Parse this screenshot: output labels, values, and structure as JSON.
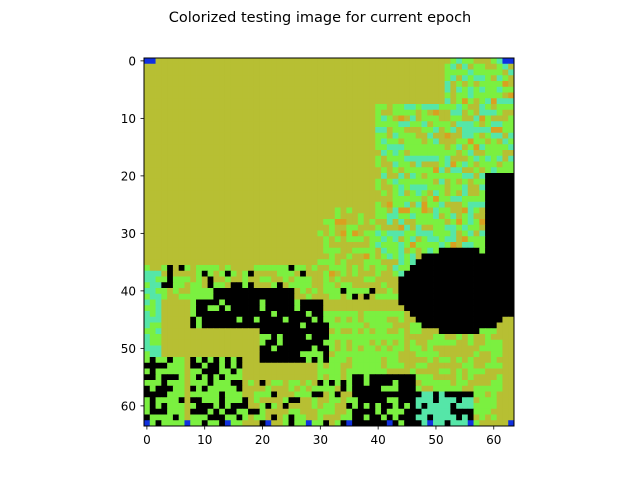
{
  "chart_data": {
    "type": "heatmap",
    "title": "Colorized testing image for current epoch",
    "xlabel": "",
    "ylabel": "",
    "grid_size": [
      64,
      64
    ],
    "xlim": [
      -0.5,
      63.5
    ],
    "ylim": [
      63.5,
      -0.5
    ],
    "xticks": [
      0,
      10,
      20,
      30,
      40,
      50,
      60
    ],
    "yticks": [
      0,
      10,
      20,
      30,
      40,
      50,
      60
    ],
    "grid": false,
    "legend": "none",
    "colors": {
      "olive": "#b7bf33",
      "lime": "#7bf040",
      "cyan": "#55e6a8",
      "black": "#000000",
      "blue": "#1030e0",
      "dark_blue": "#001060",
      "orange": "#d9a020"
    },
    "description": "64x64 pixel colorized image: olive-yellow sky upper-left, light green/cyan streaks upper-right, black shadow blob right side, black and green regions at the bottom"
  }
}
